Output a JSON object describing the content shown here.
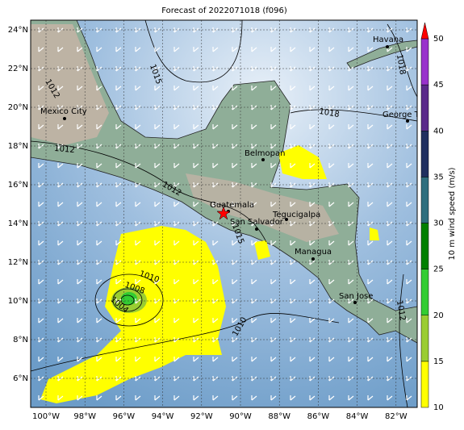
{
  "title": "Forecast of 2022071018 (f096)",
  "lon_ticks": [
    "100°W",
    "98°W",
    "96°W",
    "94°W",
    "92°W",
    "90°W",
    "88°W",
    "86°W",
    "84°W",
    "82°W"
  ],
  "lat_ticks": [
    "24°N",
    "22°N",
    "20°N",
    "18°N",
    "16°N",
    "14°N",
    "12°N",
    "10°N",
    "8°N",
    "6°N"
  ],
  "cities": [
    "Havana",
    "Mexico City",
    "George Town",
    "Belmopan",
    "Guatemala",
    "Tegucigalpa",
    "San Salvador",
    "Managua",
    "San Jose"
  ],
  "contour_labels": [
    "1015",
    "1018",
    "1018",
    "1012",
    "1012",
    "1012",
    "1010",
    "1008",
    "1004",
    "1015",
    "1012",
    "1010",
    "1018"
  ],
  "colorbar": {
    "label": "10 m wind speed (m/s)",
    "ticks": [
      10,
      15,
      20,
      25,
      30,
      35,
      40,
      45,
      50
    ],
    "colors": [
      "#ffff00",
      "#9acd32",
      "#32cd32",
      "#008000",
      "#2e6e7e",
      "#1f2f5f",
      "#5a2a8a",
      "#9932cc"
    ],
    "extend_color": "#ff0000"
  }
}
